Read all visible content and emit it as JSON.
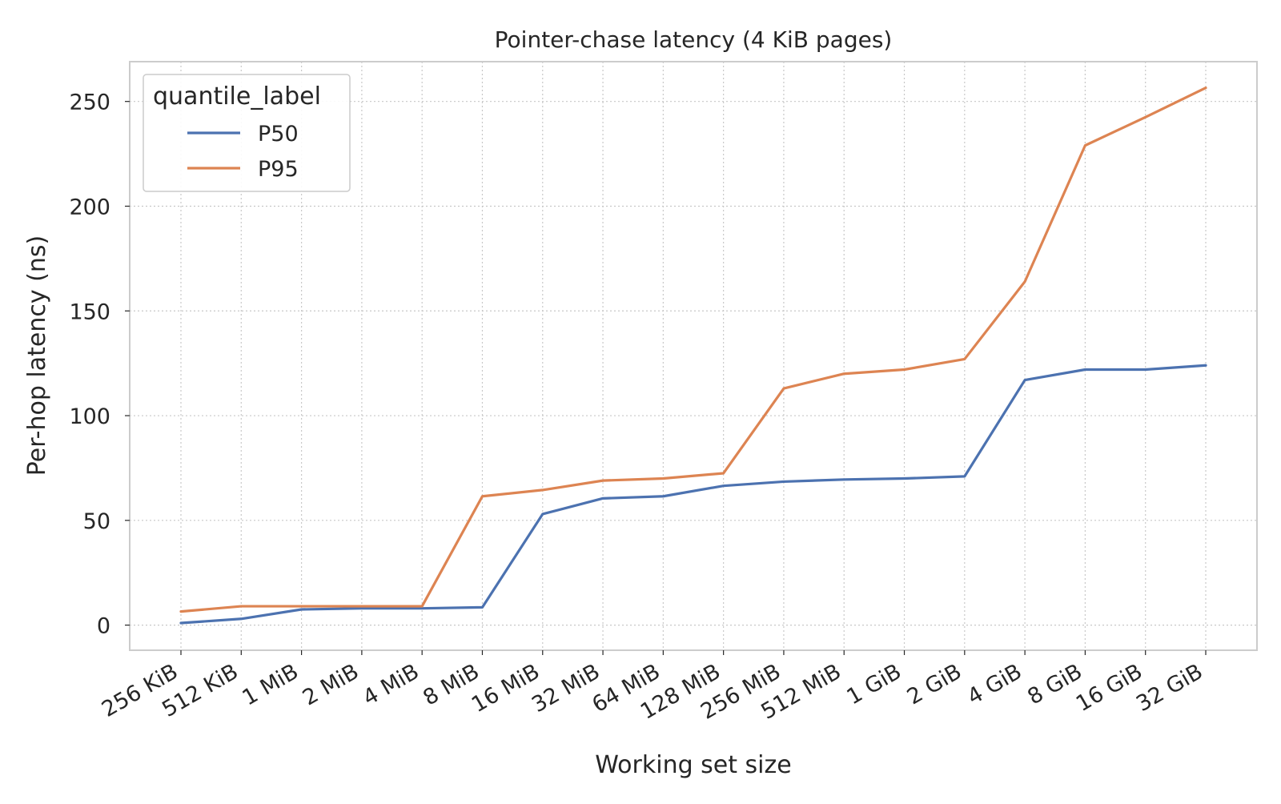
{
  "chart_data": {
    "type": "line",
    "title": "Pointer-chase latency (4 KiB pages)",
    "xlabel": "Working set size",
    "ylabel": "Per-hop latency (ns)",
    "categories": [
      "256 KiB",
      "512 KiB",
      "1 MiB",
      "2 MiB",
      "4 MiB",
      "8 MiB",
      "16 MiB",
      "32 MiB",
      "64 MiB",
      "128 MiB",
      "256 MiB",
      "512 MiB",
      "1 GiB",
      "2 GiB",
      "4 GiB",
      "8 GiB",
      "16 GiB",
      "32 GiB"
    ],
    "ylim": [
      -12,
      269
    ],
    "yticks": [
      0,
      50,
      100,
      150,
      200,
      250
    ],
    "grid": true,
    "legend": {
      "title": "quantile_label",
      "placement": "upper-left"
    },
    "series": [
      {
        "name": "P50",
        "color": "#4c72b0",
        "values": [
          1,
          3,
          7.5,
          8,
          8,
          8.5,
          53,
          60.5,
          61.5,
          66.5,
          68.5,
          69.5,
          70,
          71,
          117,
          122,
          122,
          124
        ]
      },
      {
        "name": "P95",
        "color": "#dd8452",
        "values": [
          6.5,
          9,
          9,
          9,
          9,
          61.5,
          64.5,
          69,
          70,
          72.5,
          113,
          120,
          122,
          127,
          164,
          229,
          242.5,
          256.5
        ]
      }
    ]
  }
}
